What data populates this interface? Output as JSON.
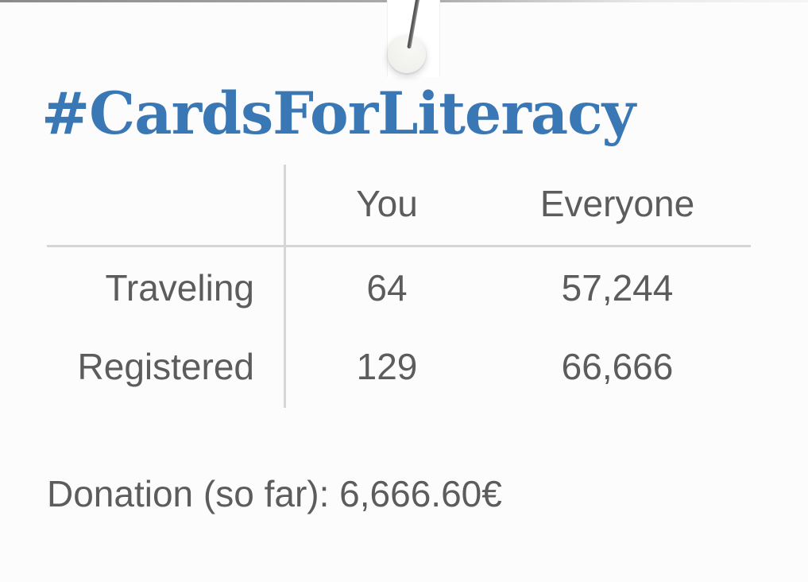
{
  "theme": {
    "background": "#fcfcfc",
    "title_color": "#3a77b5",
    "text_color": "#5c5c5c",
    "divider_color": "#d6d6d6",
    "pin_head_color": "#f2f2ef",
    "needle_color": "#5a5a5a"
  },
  "header": {
    "title": "#CardsForLiteracy",
    "pin_icon": "pushpin-icon"
  },
  "table": {
    "columns": [
      "You",
      "Everyone"
    ],
    "rows": [
      {
        "label": "Traveling",
        "you": "64",
        "everyone": "57,244"
      },
      {
        "label": "Registered",
        "you": "129",
        "everyone": "66,666"
      }
    ]
  },
  "donation": {
    "label": "Donation (so far):",
    "amount": "6,666.60€"
  }
}
